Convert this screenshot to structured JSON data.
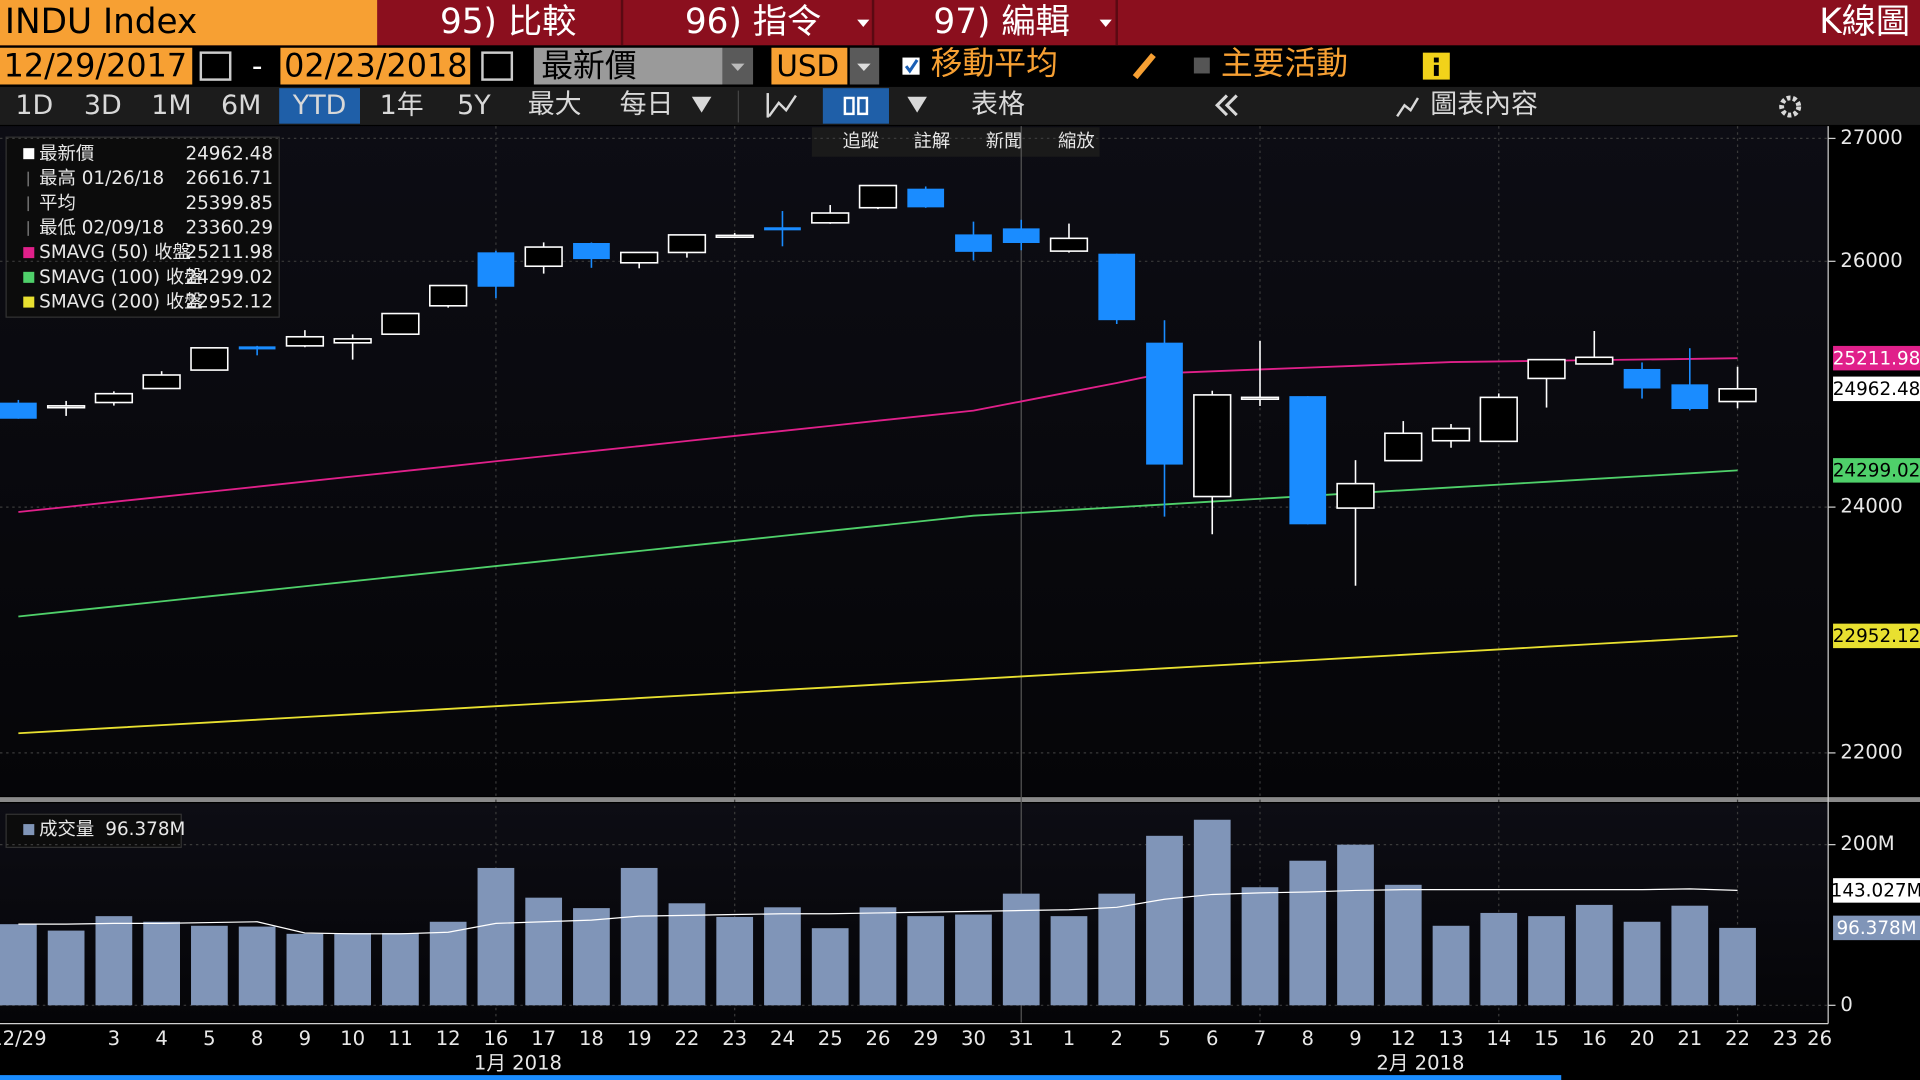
{
  "header": {
    "security": "INDU Index",
    "menu": [
      "95) 比較",
      "96) 指令",
      "97) 編輯"
    ],
    "title": "K線圖"
  },
  "controls": {
    "start_date": "12/29/2017",
    "separator": "-",
    "end_date": "02/23/2018",
    "field": "最新價",
    "currency": "USD",
    "moving_average": "移動平均",
    "key_events": "主要活動"
  },
  "periods": [
    "1D",
    "3D",
    "1M",
    "6M",
    "YTD",
    "1年",
    "5Y",
    "最大"
  ],
  "frequency": "每日",
  "table": "表格",
  "chart_content": "圖表內容",
  "tools": [
    "追蹤",
    "註解",
    "新聞",
    "縮放"
  ],
  "chart_data": {
    "type": "candlestick",
    "categories": [
      "12/29",
      null,
      "3",
      "4",
      "5",
      "8",
      "9",
      "10",
      "11",
      "12",
      "16",
      "17",
      "18",
      "19",
      "22",
      "23",
      "24",
      "25",
      "26",
      "29",
      "30",
      "31",
      "1",
      "2",
      "5",
      "6",
      "7",
      "8",
      "9",
      "12",
      "13",
      "14",
      "15",
      "16",
      "20",
      "21",
      "22",
      "23",
      "26"
    ],
    "group_labels": [
      "1月 2018",
      "2月 2018"
    ],
    "open": [
      24850,
      24809,
      24851,
      24965,
      25115,
      25308,
      25312,
      25337,
      25407,
      25638,
      26073,
      25960,
      26149,
      25988,
      26072,
      26205,
      26277,
      26313,
      26436,
      26591,
      26219,
      26268,
      26083,
      26062,
      25338,
      24086,
      24890,
      24903,
      23992,
      24378,
      24540,
      24535,
      25047,
      25165,
      25124,
      24999,
      24859,
      null,
      null
    ],
    "high": [
      24872,
      24864,
      24942,
      25106,
      25300,
      25312,
      25440,
      25405,
      25575,
      25804,
      26086,
      26154,
      26153,
      26072,
      26215,
      26230,
      26409,
      26458,
      26616.71,
      26609,
      26323,
      26338,
      26307,
      26062,
      25520,
      24947,
      25353,
      24903,
      24382,
      24700,
      24676,
      24925,
      25203,
      25433,
      25177,
      25293,
      25142,
      null,
      null
    ],
    "low": [
      24719,
      24742,
      24826,
      24963,
      25112,
      25235,
      25301,
      25200,
      25407,
      25623,
      25700,
      25900,
      25947,
      25943,
      26030,
      26195,
      26122,
      26305,
      26425,
      26435,
      26007,
      26090,
      26071,
      25490,
      23923,
      23779,
      24823,
      23860,
      23360.29,
      24378,
      24483,
      24535,
      24810,
      25165,
      24883,
      24787,
      24804,
      null,
      null
    ],
    "close": [
      24719,
      24824,
      24923,
      25075,
      25296,
      25283,
      25386,
      25369,
      25575,
      25803,
      25793,
      26116,
      26018,
      26072,
      26215,
      26211,
      26252,
      26393,
      26616.71,
      26439,
      26077,
      26149,
      26187,
      25521,
      24346,
      24913,
      24893,
      23860,
      24191,
      24601,
      24640,
      24893,
      25200,
      25219,
      24965,
      24798,
      24962.48,
      null,
      null
    ],
    "up_color": "#ffffff",
    "down_color": "#1a8cff",
    "summary": {
      "last_label": "最新價",
      "high_label": "最高 01/26/18",
      "mean_label": "平均",
      "mean": 25399.85,
      "low_label": "最低 02/09/18"
    },
    "series": [
      {
        "name": "SMAVG (50) 收盤",
        "color": "#e0208a",
        "values": [
          23960,
          24001,
          24043,
          24084,
          24125,
          24166,
          24208,
          24249,
          24290,
          24331,
          24373,
          24414,
          24455,
          24496,
          24538,
          24579,
          24620,
          24661,
          24703,
          24744,
          24785,
          24860,
          24935,
          25010,
          25090,
          25105,
          25120,
          25135,
          25150,
          25165,
          25180,
          25185,
          25191,
          25196,
          25201,
          25206,
          25211.98,
          null,
          null
        ]
      },
      {
        "name": "SMAVG (100) 收盤",
        "color": "#4fd06a",
        "values": [
          23110,
          23151,
          23192,
          23233,
          23274,
          23315,
          23356,
          23397,
          23438,
          23479,
          23520,
          23561,
          23602,
          23643,
          23684,
          23725,
          23766,
          23807,
          23848,
          23889,
          23930,
          23953,
          23976,
          23999,
          24022,
          24045,
          24068,
          24091,
          24114,
          24137,
          24160,
          24183,
          24206,
          24229,
          24252,
          24275,
          24299.02,
          null,
          null
        ]
      },
      {
        "name": "SMAVG (200) 收盤",
        "color": "#e8e030",
        "values": [
          22160,
          22182,
          22204,
          22226,
          22248,
          22270,
          22292,
          22314,
          22336,
          22358,
          22380,
          22402,
          22424,
          22446,
          22468,
          22490,
          22512,
          22534,
          22556,
          22578,
          22600,
          22622,
          22644,
          22666,
          22688,
          22710,
          22732,
          22754,
          22776,
          22798,
          22820,
          22842,
          22864,
          22886,
          22908,
          22930,
          22952.12,
          null,
          null
        ]
      }
    ],
    "ylim": [
      21650,
      27100
    ],
    "yticks": [
      22000,
      24000,
      26000,
      27000
    ],
    "grid": true,
    "volume": {
      "type": "bar",
      "name": "成交量",
      "color": "#8095b8",
      "last_label": "96.378M",
      "values": [
        101,
        93,
        111,
        104,
        99,
        98,
        89,
        90,
        90,
        104,
        171,
        134,
        121,
        171,
        127,
        110,
        122,
        96,
        122,
        111,
        113,
        139,
        111,
        139,
        211,
        231,
        147,
        180,
        200,
        150,
        99,
        115,
        111,
        125,
        104,
        124,
        96.378,
        null,
        null
      ],
      "average": {
        "color": "#ffffff",
        "last_label": "143.027M",
        "values": [
          101,
          101,
          102,
          102,
          103,
          104,
          90,
          89,
          89,
          91,
          102,
          104,
          106,
          111,
          112,
          113,
          114,
          114,
          115,
          116,
          117,
          118,
          119,
          122,
          132,
          138,
          140,
          141,
          143,
          144,
          144,
          144,
          144,
          144,
          144,
          145,
          143.027,
          null,
          null
        ]
      },
      "ylim": [
        0,
        250
      ],
      "yticks": [
        0,
        {
          "value": 200,
          "label": "200M"
        }
      ]
    }
  }
}
